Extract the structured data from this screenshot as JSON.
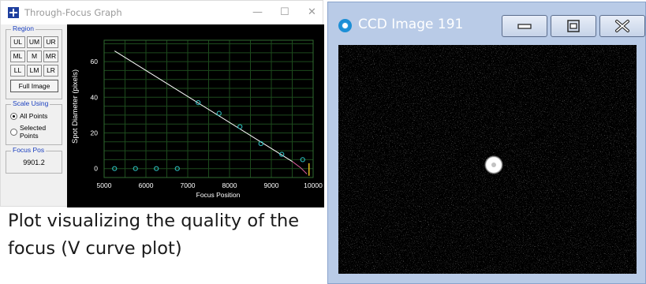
{
  "through_focus": {
    "title": "Through-Focus Graph",
    "controls": {
      "minimize": "—",
      "maximize": "☐",
      "close": "✕"
    },
    "region": {
      "label": "Region",
      "buttons": [
        "UL",
        "UM",
        "UR",
        "ML",
        "M",
        "MR",
        "LL",
        "LM",
        "LR"
      ],
      "full_image": "Full Image"
    },
    "scale_using": {
      "label": "Scale Using",
      "options": [
        {
          "label": "All Points",
          "selected": true
        },
        {
          "label": "Selected Points",
          "selected": false
        }
      ]
    },
    "focus_pos": {
      "label": "Focus Pos",
      "value": "9901.2"
    }
  },
  "caption": "Plot visualizing the quality of the focus (V curve plot)",
  "ccd": {
    "title": "CCD Image 191"
  },
  "chart_data": {
    "type": "scatter",
    "title": "",
    "xlabel": "Focus Position",
    "ylabel": "Spot Diameter (pixels)",
    "xlim": [
      5000,
      10000
    ],
    "ylim": [
      -5,
      72
    ],
    "x_ticks": [
      5000,
      6000,
      7000,
      8000,
      9000,
      10000
    ],
    "y_ticks": [
      0,
      20,
      40,
      60
    ],
    "grid": true,
    "points": [
      {
        "x": 5250,
        "y": 0
      },
      {
        "x": 5750,
        "y": 0
      },
      {
        "x": 6250,
        "y": 0
      },
      {
        "x": 6750,
        "y": 0
      },
      {
        "x": 7250,
        "y": 37
      },
      {
        "x": 7750,
        "y": 31
      },
      {
        "x": 8250,
        "y": 23.5
      },
      {
        "x": 8750,
        "y": 14
      },
      {
        "x": 9250,
        "y": 8
      },
      {
        "x": 9750,
        "y": 5
      }
    ],
    "fit_line": [
      {
        "x": 5250,
        "y": 66
      },
      {
        "x": 9500,
        "y": 4
      },
      {
        "x": 9700,
        "y": 0.5
      },
      {
        "x": 9850,
        "y": -3
      }
    ],
    "focus_marker_x": 9901.2,
    "colors": {
      "background": "#000000",
      "grid": "#1d4a1d",
      "axis_text": "#ffffff",
      "points": "#2ec4c4",
      "fit_line": "#ffffff",
      "fit_tail": "#e060a0",
      "focus_marker": "#e6c020"
    }
  }
}
